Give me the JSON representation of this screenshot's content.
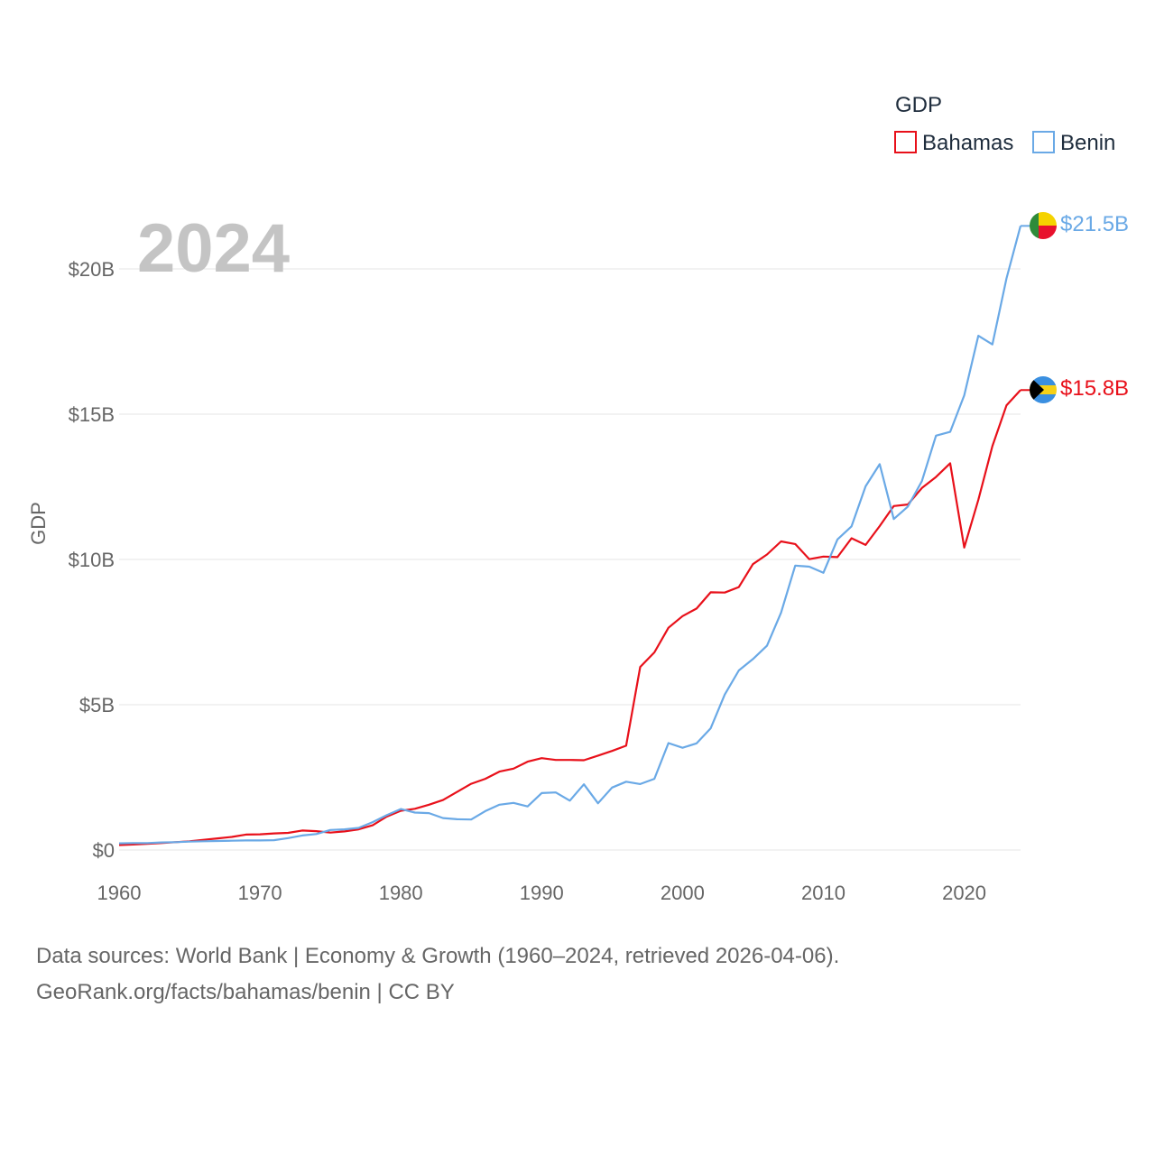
{
  "colors": {
    "bahamas": "#e8101a",
    "benin": "#6aa9e6",
    "grid": "#e6e6e6",
    "text": "#666666"
  },
  "chart_data": {
    "type": "line",
    "title": "GDP",
    "ylabel": "GDP",
    "xlabel": "",
    "year_label": "2024",
    "xlim": [
      1960,
      2024
    ],
    "ylim": [
      0,
      22
    ],
    "x_ticks": [
      {
        "value": 1960,
        "label": "1960"
      },
      {
        "value": 1970,
        "label": "1970"
      },
      {
        "value": 1980,
        "label": "1980"
      },
      {
        "value": 1990,
        "label": "1990"
      },
      {
        "value": 2000,
        "label": "2000"
      },
      {
        "value": 2010,
        "label": "2010"
      },
      {
        "value": 2020,
        "label": "2020"
      }
    ],
    "y_ticks": [
      {
        "value": 0,
        "label": "$0"
      },
      {
        "value": 5,
        "label": "$5B"
      },
      {
        "value": 10,
        "label": "$10B"
      },
      {
        "value": 15,
        "label": "$15B"
      },
      {
        "value": 20,
        "label": "$20B"
      }
    ],
    "legend_title": "GDP",
    "x": [
      1960,
      1961,
      1962,
      1963,
      1964,
      1965,
      1966,
      1967,
      1968,
      1969,
      1970,
      1971,
      1972,
      1973,
      1974,
      1975,
      1976,
      1977,
      1978,
      1979,
      1980,
      1981,
      1982,
      1983,
      1984,
      1985,
      1986,
      1987,
      1988,
      1989,
      1990,
      1991,
      1992,
      1993,
      1994,
      1995,
      1996,
      1997,
      1998,
      1999,
      2000,
      2001,
      2002,
      2003,
      2004,
      2005,
      2006,
      2007,
      2008,
      2009,
      2010,
      2011,
      2012,
      2013,
      2014,
      2015,
      2016,
      2017,
      2018,
      2019,
      2020,
      2021,
      2022,
      2023,
      2024
    ],
    "series": [
      {
        "name": "Bahamas",
        "color_key": "bahamas",
        "end_label": "$15.8B",
        "values": [
          0.17,
          0.19,
          0.21,
          0.24,
          0.27,
          0.3,
          0.35,
          0.4,
          0.45,
          0.53,
          0.54,
          0.57,
          0.59,
          0.67,
          0.65,
          0.6,
          0.64,
          0.71,
          0.85,
          1.15,
          1.35,
          1.42,
          1.56,
          1.72,
          2.0,
          2.28,
          2.45,
          2.7,
          2.8,
          3.04,
          3.16,
          3.1,
          3.1,
          3.09,
          3.25,
          3.41,
          3.59,
          6.3,
          6.8,
          7.65,
          8.05,
          8.31,
          8.87,
          8.86,
          9.05,
          9.84,
          10.17,
          10.62,
          10.53,
          10.01,
          10.1,
          10.08,
          10.73,
          10.5,
          11.15,
          11.84,
          11.89,
          12.46,
          12.84,
          13.31,
          10.41,
          12.05,
          13.9,
          15.3,
          15.83
        ]
      },
      {
        "name": "Benin",
        "color_key": "benin",
        "end_label": "$21.5B",
        "values": [
          0.23,
          0.24,
          0.24,
          0.26,
          0.27,
          0.29,
          0.3,
          0.31,
          0.32,
          0.33,
          0.33,
          0.34,
          0.41,
          0.5,
          0.55,
          0.69,
          0.71,
          0.76,
          0.96,
          1.2,
          1.41,
          1.29,
          1.27,
          1.1,
          1.06,
          1.05,
          1.34,
          1.56,
          1.62,
          1.5,
          1.96,
          1.98,
          1.7,
          2.26,
          1.61,
          2.15,
          2.35,
          2.27,
          2.45,
          3.68,
          3.52,
          3.67,
          4.19,
          5.35,
          6.18,
          6.57,
          7.03,
          8.17,
          9.79,
          9.75,
          9.54,
          10.69,
          11.14,
          12.52,
          13.28,
          11.39,
          11.82,
          12.7,
          14.26,
          14.39,
          15.65,
          17.7,
          17.4,
          19.67,
          21.48
        ]
      }
    ]
  },
  "footer": {
    "line1": "Data sources: World Bank | Economy & Growth (1960–2024, retrieved 2026-04-06).",
    "line2": "GeoRank.org/facts/bahamas/benin | CC BY"
  }
}
